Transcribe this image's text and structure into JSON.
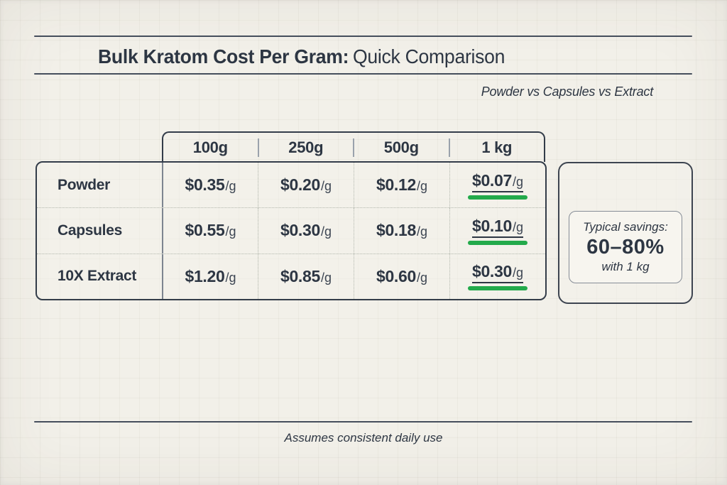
{
  "page": {
    "title_bold": "Bulk Kratom Cost Per Gram:",
    "title_regular": "Quick Comparison",
    "subtitle": "Powder vs Capsules vs Extract",
    "footnote": "Assumes consistent daily use"
  },
  "table": {
    "unit": "/g",
    "columns": [
      "100g",
      "250g",
      "500g",
      "1 kg"
    ],
    "rows": [
      {
        "label": "Powder",
        "prices": [
          "$0.35",
          "$0.20",
          "$0.12",
          "$0.07"
        ]
      },
      {
        "label": "Capsules",
        "prices": [
          "$0.55",
          "$0.30",
          "$0.18",
          "$0.10"
        ]
      },
      {
        "label": "10X Extract",
        "prices": [
          "$1.20",
          "$0.85",
          "$0.60",
          "$0.30"
        ]
      }
    ]
  },
  "callout": {
    "line1": "Typical savings:",
    "value": "60–80%",
    "line3": "with 1 kg"
  },
  "colors": {
    "background": "#f2f0e9",
    "ink": "#2d3643",
    "accent_green": "#23aa4b"
  },
  "chart_data": {
    "type": "table",
    "title": "Bulk Kratom Cost Per Gram: Quick Comparison",
    "subtitle": "Powder vs Capsules vs Extract",
    "columns": [
      "100g",
      "250g",
      "500g",
      "1 kg"
    ],
    "unit": "USD per gram",
    "rows": [
      {
        "label": "Powder",
        "values": [
          0.35,
          0.2,
          0.12,
          0.07
        ]
      },
      {
        "label": "Capsules",
        "values": [
          0.55,
          0.3,
          0.18,
          0.1
        ]
      },
      {
        "label": "10X Extract",
        "values": [
          1.2,
          0.85,
          0.6,
          0.3
        ]
      }
    ],
    "highlighted_column": "1 kg",
    "annotation": "Typical savings: 60–80% with 1 kg",
    "footnote": "Assumes consistent daily use"
  }
}
